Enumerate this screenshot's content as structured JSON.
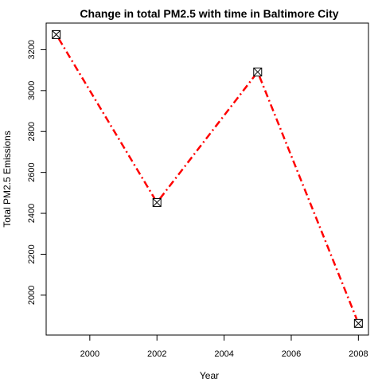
{
  "chart_data": {
    "type": "line",
    "title": "Change in total PM2.5 with time in Baltimore City",
    "xlabel": "Year",
    "ylabel": "Total PM2.5 Emissions",
    "x": [
      1999,
      2002,
      2005,
      2008
    ],
    "series": [
      {
        "values": [
          3274,
          2453,
          3091,
          1862
        ]
      }
    ],
    "xlim": [
      1998.7,
      2008.3
    ],
    "ylim": [
      1805,
      3330
    ],
    "xticks": [
      2000,
      2002,
      2004,
      2006,
      2008
    ],
    "yticks": [
      2000,
      2200,
      2400,
      2600,
      2800,
      3000,
      3200
    ],
    "line_color": "#ff0000",
    "line_style": "dotdash",
    "marker": "boxed-x",
    "grid": false
  }
}
